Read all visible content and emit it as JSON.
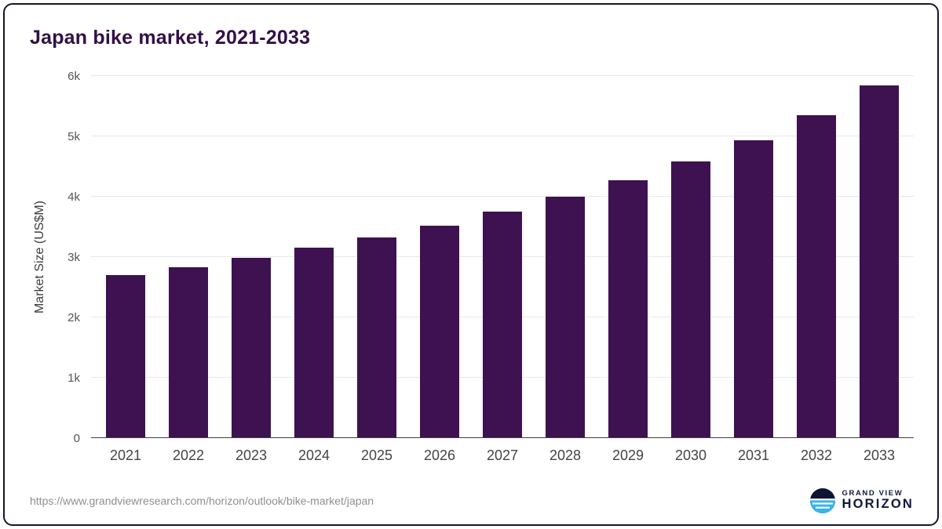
{
  "chart_data": {
    "type": "bar",
    "title": "Japan bike market, 2021-2033",
    "categories": [
      "2021",
      "2022",
      "2023",
      "2024",
      "2025",
      "2026",
      "2027",
      "2028",
      "2029",
      "2030",
      "2031",
      "2032",
      "2033"
    ],
    "values": [
      2700,
      2830,
      2990,
      3150,
      3330,
      3520,
      3750,
      4000,
      4270,
      4580,
      4940,
      5350,
      5840
    ],
    "xlabel": "",
    "ylabel": "Market Size (US$M)",
    "ylim": [
      0,
      6000
    ],
    "yticks": [
      "0",
      "1k",
      "2k",
      "3k",
      "4k",
      "5k",
      "6k"
    ],
    "bar_color": "#3e1151",
    "grid": true,
    "legend": false
  },
  "footer": {
    "source_url": "https://www.grandviewresearch.com/horizon/outlook/bike-market/japan",
    "brand_top": "GRAND VIEW",
    "brand_bottom": "HORIZON"
  },
  "colors": {
    "bar": "#3e1151",
    "title_text": "#321047",
    "card_border": "#15152e",
    "gridline": "#e8e8e8",
    "baseline": "#3f3f3f",
    "axis_text": "#555555",
    "url_text": "#8f8f8f",
    "logo_blue": "#38b5e8",
    "logo_dark": "#0e1434"
  }
}
